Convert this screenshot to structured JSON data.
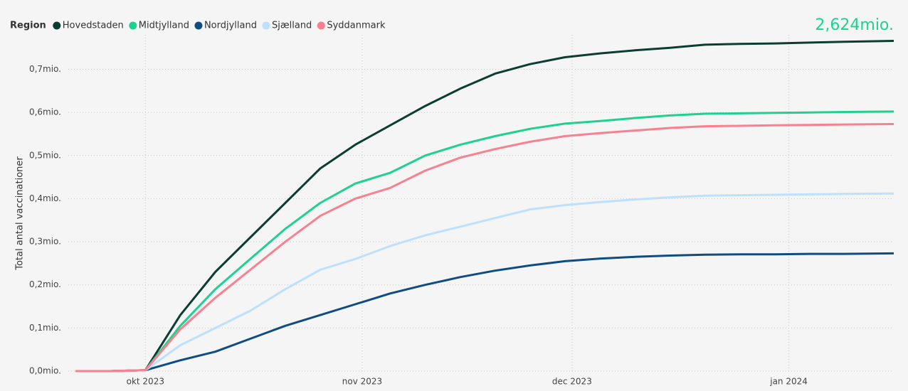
{
  "chart_data": {
    "type": "line",
    "legend_title": "Region",
    "kpi": "2,624mio.",
    "ylabel": "Total antal vaccinationer",
    "x": [
      -10,
      -5,
      0,
      5,
      10,
      15,
      20,
      25,
      30,
      35,
      40,
      45,
      50,
      55,
      60,
      65,
      70,
      75,
      80,
      85,
      90,
      95,
      100,
      107
    ],
    "xlim": [
      -10,
      107
    ],
    "xticks": [
      {
        "value": 0,
        "label": "okt 2023"
      },
      {
        "value": 31,
        "label": "nov 2023"
      },
      {
        "value": 61,
        "label": "dec 2023"
      },
      {
        "value": 92,
        "label": "jan 2024"
      }
    ],
    "ylim": [
      0,
      0.78
    ],
    "yticks": [
      {
        "value": 0,
        "label": "0,0mio."
      },
      {
        "value": 0.1,
        "label": "0,1mio."
      },
      {
        "value": 0.2,
        "label": "0,2mio."
      },
      {
        "value": 0.3,
        "label": "0,3mio."
      },
      {
        "value": 0.4,
        "label": "0,4mio."
      },
      {
        "value": 0.5,
        "label": "0,5mio."
      },
      {
        "value": 0.6,
        "label": "0,6mio."
      },
      {
        "value": 0.7,
        "label": "0,7mio."
      }
    ],
    "grid": true,
    "series": [
      {
        "name": "Hovedstaden",
        "color": "#0b3d32",
        "values": [
          0,
          0,
          0.002,
          0.13,
          0.23,
          0.31,
          0.39,
          0.47,
          0.525,
          0.57,
          0.615,
          0.655,
          0.69,
          0.712,
          0.728,
          0.737,
          0.744,
          0.75,
          0.757,
          0.759,
          0.76,
          0.762,
          0.764,
          0.766
        ]
      },
      {
        "name": "Midtjylland",
        "color": "#1fd18f",
        "values": [
          0,
          0,
          0.002,
          0.105,
          0.19,
          0.26,
          0.33,
          0.39,
          0.435,
          0.46,
          0.5,
          0.525,
          0.545,
          0.562,
          0.574,
          0.58,
          0.587,
          0.593,
          0.597,
          0.598,
          0.599,
          0.6,
          0.601,
          0.602
        ]
      },
      {
        "name": "Nordjylland",
        "color": "#0f4c81",
        "values": [
          0,
          0,
          0.002,
          0.025,
          0.045,
          0.075,
          0.105,
          0.13,
          0.155,
          0.18,
          0.2,
          0.218,
          0.233,
          0.245,
          0.255,
          0.261,
          0.265,
          0.268,
          0.27,
          0.271,
          0.271,
          0.272,
          0.272,
          0.273
        ]
      },
      {
        "name": "Sjælland",
        "color": "#bde0fd",
        "values": [
          0,
          0,
          0.002,
          0.06,
          0.1,
          0.14,
          0.19,
          0.235,
          0.26,
          0.29,
          0.315,
          0.335,
          0.355,
          0.375,
          0.385,
          0.392,
          0.398,
          0.403,
          0.407,
          0.408,
          0.409,
          0.41,
          0.411,
          0.412
        ]
      },
      {
        "name": "Syddanmark",
        "color": "#f8808f",
        "values": [
          0,
          0,
          0.002,
          0.097,
          0.17,
          0.235,
          0.3,
          0.36,
          0.4,
          0.425,
          0.465,
          0.495,
          0.515,
          0.532,
          0.545,
          0.552,
          0.558,
          0.564,
          0.568,
          0.569,
          0.57,
          0.571,
          0.572,
          0.573
        ]
      }
    ]
  }
}
